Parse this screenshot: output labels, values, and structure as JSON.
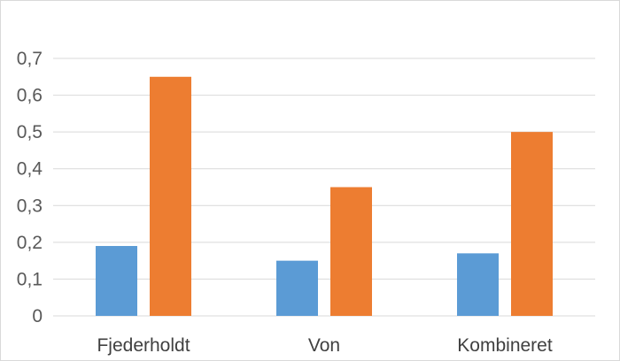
{
  "chart_data": {
    "type": "bar",
    "title": "",
    "xlabel": "",
    "ylabel": "",
    "categories": [
      "Fjederholdt",
      "Von",
      "Kombineret"
    ],
    "series": [
      {
        "values": [
          0.19,
          0.15,
          0.17
        ],
        "color": "#5b9bd5"
      },
      {
        "values": [
          0.65,
          0.35,
          0.5
        ],
        "color": "#ed7d31"
      }
    ],
    "ylim": [
      0,
      0.7
    ],
    "yticks": [
      0,
      0.1,
      0.2,
      0.3,
      0.4,
      0.5,
      0.6,
      0.7
    ],
    "ytick_labels": [
      "0",
      "0,1",
      "0,2",
      "0,3",
      "0,4",
      "0,5",
      "0,6",
      "0,7"
    ],
    "grid": true,
    "legend": "none",
    "gridline_color": "#d9d9d9"
  }
}
